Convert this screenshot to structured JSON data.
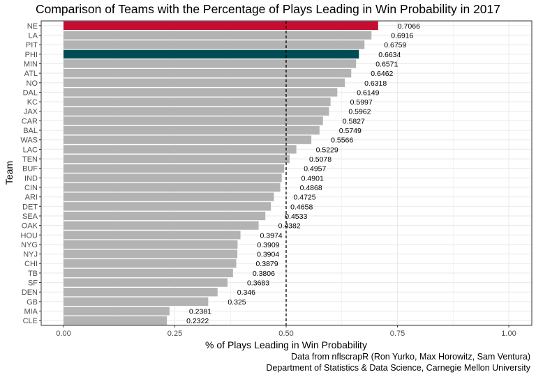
{
  "chart_data": {
    "type": "bar",
    "orientation": "horizontal",
    "title": "Comparison of Teams with the Percentage of Plays Leading in Win Probability in 2017",
    "xlabel": "% of Plays Leading in Win Probability",
    "ylabel": "Team",
    "xlim": [
      0,
      1
    ],
    "xticks": [
      "0.00",
      "0.25",
      "0.50",
      "0.75",
      "1.00"
    ],
    "reference_line": 0.5,
    "grid": true,
    "categories": [
      "NE",
      "LA",
      "PIT",
      "PHI",
      "MIN",
      "ATL",
      "NO",
      "DAL",
      "KC",
      "JAX",
      "CAR",
      "BAL",
      "WAS",
      "LAC",
      "TEN",
      "BUF",
      "IND",
      "CIN",
      "ARI",
      "DET",
      "SEA",
      "OAK",
      "HOU",
      "NYG",
      "NYJ",
      "CHI",
      "TB",
      "SF",
      "DEN",
      "GB",
      "MIA",
      "CLE"
    ],
    "values": [
      0.7066,
      0.6916,
      0.6759,
      0.6634,
      0.6571,
      0.6462,
      0.6318,
      0.6149,
      0.5997,
      0.5962,
      0.5827,
      0.5749,
      0.5566,
      0.5229,
      0.5078,
      0.4957,
      0.4901,
      0.4868,
      0.4725,
      0.4658,
      0.4533,
      0.4382,
      0.3974,
      0.3909,
      0.3904,
      0.3879,
      0.3806,
      0.3683,
      0.346,
      0.325,
      0.2381,
      0.2322
    ],
    "value_labels": [
      "0.7066",
      "0.6916",
      "0.6759",
      "0.6634",
      "0.6571",
      "0.6462",
      "0.6318",
      "0.6149",
      "0.5997",
      "0.5962",
      "0.5827",
      "0.5749",
      "0.5566",
      "0.5229",
      "0.5078",
      "0.4957",
      "0.4901",
      "0.4868",
      "0.4725",
      "0.4658",
      "0.4533",
      "0.4382",
      "0.3974",
      "0.3909",
      "0.3904",
      "0.3879",
      "0.3806",
      "0.3683",
      "0.346",
      "0.325",
      "0.2381",
      "0.2322"
    ],
    "colors": {
      "default": "#b3b3b3",
      "highlight": {
        "NE": "#c60c30",
        "PHI": "#004c54"
      },
      "grid": "#ebebeb",
      "panel_border": "#333333",
      "reference_line": "#000000"
    },
    "caption": [
      "Data from nflscrapR (Ron Yurko, Max Horowitz, Sam Ventura)",
      "Department of Statistics & Data Science, Carnegie Mellon University"
    ]
  }
}
